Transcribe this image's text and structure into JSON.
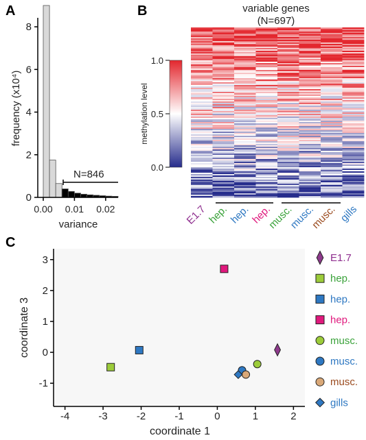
{
  "panels": {
    "a": {
      "letter": "A",
      "xlabel": "variance",
      "ylabel": "frequency (x10⁴)",
      "yticks": [
        "0",
        "2",
        "4",
        "6",
        "8"
      ],
      "xticks": [
        "0.00",
        "0.01",
        "0.02"
      ],
      "annotation": "N=846"
    },
    "b": {
      "letter": "B",
      "title_line1": "variable genes",
      "title_line2": "(N=697)",
      "colorbar_label": "methylation level",
      "colorbar_ticks": [
        "1.0",
        "0.5",
        "0.0"
      ],
      "columns": [
        {
          "label": "E1.7",
          "color": "#8e2d8e"
        },
        {
          "label": "hep.",
          "color": "#3aa23a"
        },
        {
          "label": "hep.",
          "color": "#2e78c2"
        },
        {
          "label": "hep.",
          "color": "#e0197d"
        },
        {
          "label": "musc.",
          "color": "#3aa23a"
        },
        {
          "label": "musc.",
          "color": "#2e78c2"
        },
        {
          "label": "musc.",
          "color": "#9a4a1e"
        },
        {
          "label": "gills",
          "color": "#2e78c2"
        }
      ],
      "colors": {
        "high": "#e3272e",
        "mid": "#ffffff",
        "low": "#262c8c"
      }
    },
    "c": {
      "letter": "C",
      "xlabel": "coordinate 1",
      "ylabel": "coordinate 3",
      "xticks": [
        "-4",
        "-3",
        "-2",
        "-1",
        "0",
        "1",
        "2"
      ],
      "yticks": [
        "-1",
        "0",
        "1",
        "2",
        "3"
      ],
      "legend": [
        {
          "label": "E1.7",
          "shape": "diamond-icon",
          "color": "#8e3a8c",
          "text_color": "#8e2d8e"
        },
        {
          "label": "hep.",
          "shape": "square-icon",
          "color": "#9ccc3a",
          "text_color": "#3aa23a"
        },
        {
          "label": "hep.",
          "shape": "square-icon",
          "color": "#2e78c2",
          "text_color": "#2e78c2"
        },
        {
          "label": "hep.",
          "shape": "square-icon",
          "color": "#e0197d",
          "text_color": "#e0197d"
        },
        {
          "label": "musc.",
          "shape": "circle-icon",
          "color": "#9ccc3a",
          "text_color": "#3aa23a"
        },
        {
          "label": "musc.",
          "shape": "circle-icon",
          "color": "#2e78c2",
          "text_color": "#2e78c2"
        },
        {
          "label": "musc.",
          "shape": "circle-icon",
          "color": "#d9a878",
          "text_color": "#9a4a1e"
        },
        {
          "label": "gills",
          "shape": "diamond-icon",
          "color": "#2e78c2",
          "text_color": "#2e78c2"
        }
      ]
    }
  },
  "chart_data": [
    {
      "type": "bar",
      "panel": "A",
      "xlabel": "variance",
      "ylabel": "frequency (x10⁴)",
      "bin_width": 0.002,
      "bin_starts": [
        0.0,
        0.002,
        0.004,
        0.006,
        0.008,
        0.01,
        0.012,
        0.014,
        0.016,
        0.018,
        0.02,
        0.022
      ],
      "values": [
        9.0,
        1.75,
        0.65,
        0.4,
        0.28,
        0.2,
        0.15,
        0.12,
        0.1,
        0.08,
        0.06,
        0.05
      ],
      "highlight_from": 0.006,
      "annotation": "N=846",
      "xlim": [
        0,
        0.024
      ],
      "ylim": [
        0,
        9
      ]
    },
    {
      "type": "heatmap",
      "panel": "B",
      "title": "variable genes (N=697)",
      "columns": [
        "E1.7",
        "hep.",
        "hep.",
        "hep.",
        "musc.",
        "musc.",
        "musc.",
        "gills"
      ],
      "value_range": [
        0.0,
        1.0
      ],
      "colorbar_label": "methylation level"
    },
    {
      "type": "scatter",
      "panel": "C",
      "xlabel": "coordinate 1",
      "ylabel": "coordinate 3",
      "xlim": [
        -4.3,
        2.3
      ],
      "ylim": [
        -1.75,
        3.35
      ],
      "points": [
        {
          "label": "E1.7",
          "x": 1.58,
          "y": 0.08,
          "shape": "diamond",
          "color": "#8e3a8c"
        },
        {
          "label": "hep.",
          "x": -2.8,
          "y": -0.48,
          "shape": "square",
          "color": "#9ccc3a"
        },
        {
          "label": "hep.",
          "x": -2.05,
          "y": 0.07,
          "shape": "square",
          "color": "#2e78c2"
        },
        {
          "label": "hep.",
          "x": 0.18,
          "y": 2.7,
          "shape": "square",
          "color": "#e0197d"
        },
        {
          "label": "musc.",
          "x": 1.05,
          "y": -0.38,
          "shape": "circle",
          "color": "#9ccc3a"
        },
        {
          "label": "musc.",
          "x": 0.65,
          "y": -0.58,
          "shape": "circle",
          "color": "#2e78c2"
        },
        {
          "label": "musc.",
          "x": 0.75,
          "y": -0.72,
          "shape": "circle",
          "color": "#d9a878"
        },
        {
          "label": "gills",
          "x": 0.55,
          "y": -0.72,
          "shape": "diamond",
          "color": "#2e78c2"
        }
      ]
    }
  ]
}
